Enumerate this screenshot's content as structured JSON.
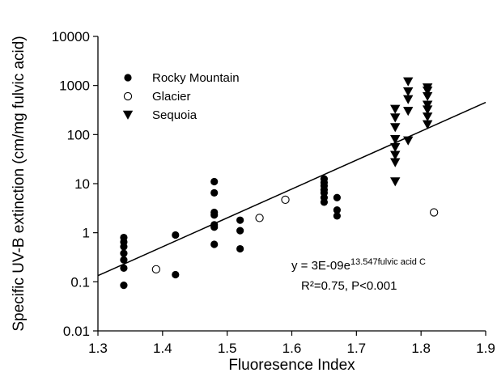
{
  "chart_data": {
    "type": "scatter",
    "xlabel": "Fluoresence Index",
    "ylabel": "Specific UV-B extinction (cm/mg fulvic acid)",
    "xlim": [
      1.3,
      1.9
    ],
    "ylim": [
      0.01,
      10000
    ],
    "yscale": "log",
    "x_ticks": [
      1.3,
      1.4,
      1.5,
      1.6,
      1.7,
      1.8,
      1.9
    ],
    "x_tick_labels": [
      "1.3",
      "1.4",
      "1.5",
      "1.6",
      "1.7",
      "1.8",
      "1.9"
    ],
    "y_ticks": [
      0.01,
      0.1,
      1,
      10,
      100,
      1000,
      10000
    ],
    "y_tick_labels": [
      "0.01",
      "0.1",
      "1",
      "10",
      "100",
      "1000",
      "10000"
    ],
    "grid": false,
    "legend_position": "top-left",
    "series": [
      {
        "name": "Rocky Mountain",
        "marker": "filled-circle",
        "points": [
          [
            1.34,
            0.085
          ],
          [
            1.34,
            0.19
          ],
          [
            1.34,
            0.28
          ],
          [
            1.34,
            0.38
          ],
          [
            1.34,
            0.52
          ],
          [
            1.34,
            0.65
          ],
          [
            1.34,
            0.8
          ],
          [
            1.42,
            0.14
          ],
          [
            1.42,
            0.9
          ],
          [
            1.48,
            0.58
          ],
          [
            1.48,
            1.3
          ],
          [
            1.48,
            1.45
          ],
          [
            1.48,
            2.3
          ],
          [
            1.48,
            2.6
          ],
          [
            1.48,
            6.5
          ],
          [
            1.48,
            11
          ],
          [
            1.52,
            0.47
          ],
          [
            1.52,
            1.1
          ],
          [
            1.52,
            1.8
          ],
          [
            1.65,
            4.2
          ],
          [
            1.65,
            5.2
          ],
          [
            1.65,
            6.5
          ],
          [
            1.65,
            7.5
          ],
          [
            1.65,
            9.0
          ],
          [
            1.65,
            10.5
          ],
          [
            1.65,
            12.5
          ],
          [
            1.67,
            2.2
          ],
          [
            1.67,
            2.9
          ],
          [
            1.67,
            5.2
          ]
        ]
      },
      {
        "name": "Glacier",
        "marker": "open-circle",
        "points": [
          [
            1.39,
            0.18
          ],
          [
            1.55,
            2.0
          ],
          [
            1.59,
            4.7
          ],
          [
            1.82,
            2.6
          ]
        ]
      },
      {
        "name": "Sequoia",
        "marker": "filled-triangle-down",
        "points": [
          [
            1.76,
            11
          ],
          [
            1.76,
            27
          ],
          [
            1.76,
            38
          ],
          [
            1.76,
            55
          ],
          [
            1.76,
            80
          ],
          [
            1.76,
            140
          ],
          [
            1.76,
            220
          ],
          [
            1.76,
            330
          ],
          [
            1.78,
            75
          ],
          [
            1.78,
            300
          ],
          [
            1.78,
            520
          ],
          [
            1.78,
            750
          ],
          [
            1.78,
            1200
          ],
          [
            1.81,
            160
          ],
          [
            1.81,
            230
          ],
          [
            1.81,
            320
          ],
          [
            1.81,
            400
          ],
          [
            1.81,
            600
          ],
          [
            1.81,
            780
          ],
          [
            1.81,
            900
          ]
        ]
      }
    ],
    "fit_line": {
      "a": 3e-09,
      "b": 13.547,
      "equation_prefix": "y = 3E-09e",
      "equation_exponent": "13.547fulvic acid C",
      "stats": "R²=0.75, P<0.001"
    }
  }
}
